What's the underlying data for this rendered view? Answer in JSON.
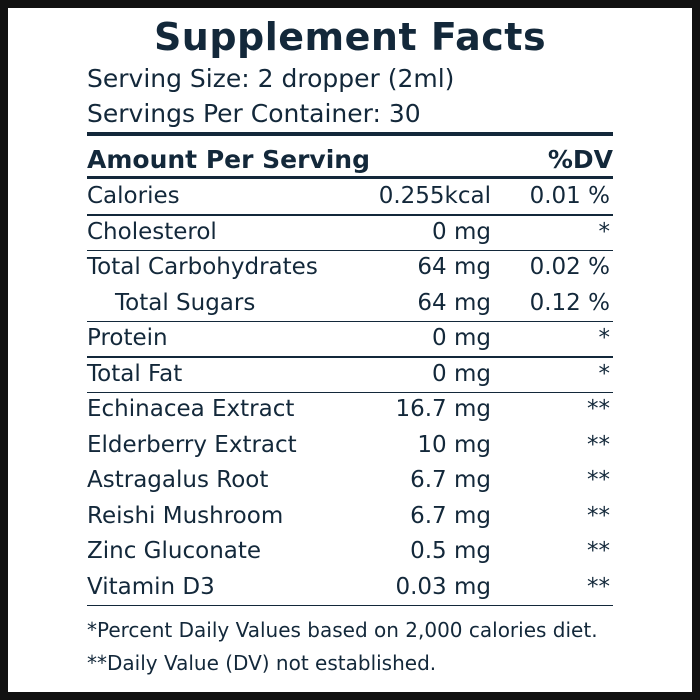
{
  "title": "Supplement Facts",
  "serving_size": "Serving Size:  2 dropper (2ml)",
  "servings_per_container": "Servings Per Container: 30",
  "table": {
    "header": [
      "Amount Per Serving",
      "%DV"
    ],
    "rows": [
      [
        "Calories",
        "0.255kcal",
        "0.01 %"
      ],
      [
        "Cholesterol",
        "0 mg",
        "*"
      ],
      [
        "Total Carbohydrates",
        "64 mg",
        "0.02 %"
      ],
      [
        "Total Sugars",
        "64 mg",
        "0.12 %"
      ],
      [
        "Protein",
        "0 mg",
        "*"
      ],
      [
        "Total Fat",
        "0 mg",
        "*"
      ],
      [
        "Echinacea Extract",
        "16.7 mg",
        "**"
      ],
      [
        "Elderberry Extract",
        "10 mg",
        "**"
      ],
      [
        "Astragalus Root",
        "6.7 mg",
        "**"
      ],
      [
        "Reishi Mushroom",
        "6.7 mg",
        "**"
      ],
      [
        "Zinc Gluconate",
        "0.5 mg",
        "**"
      ],
      [
        "Vitamin D3",
        "0.03 mg",
        "**"
      ]
    ]
  },
  "footnotes": [
    "*Percent Daily Values based on 2,000 calories diet.",
    "**Daily Value (DV) not established."
  ]
}
